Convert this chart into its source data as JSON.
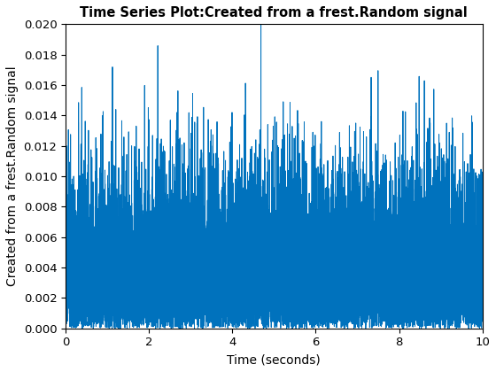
{
  "title": "Time Series Plot:Created from a frest.Random signal",
  "xlabel": "Time (seconds)",
  "ylabel": "Created from a frest.Random signal",
  "xlim": [
    0,
    10
  ],
  "ylim": [
    0,
    0.02
  ],
  "line_color": "#0072BD",
  "line_width": 0.7,
  "fs": 1000,
  "duration": 10,
  "seed": 7,
  "title_fontsize": 10.5,
  "label_fontsize": 10,
  "tick_fontsize": 9.5,
  "yticks": [
    0,
    0.002,
    0.004,
    0.006,
    0.008,
    0.01,
    0.012,
    0.014,
    0.016,
    0.018,
    0.02
  ],
  "xticks": [
    0,
    2,
    4,
    6,
    8,
    10
  ],
  "figsize": [
    5.6,
    4.2
  ],
  "dpi": 100
}
